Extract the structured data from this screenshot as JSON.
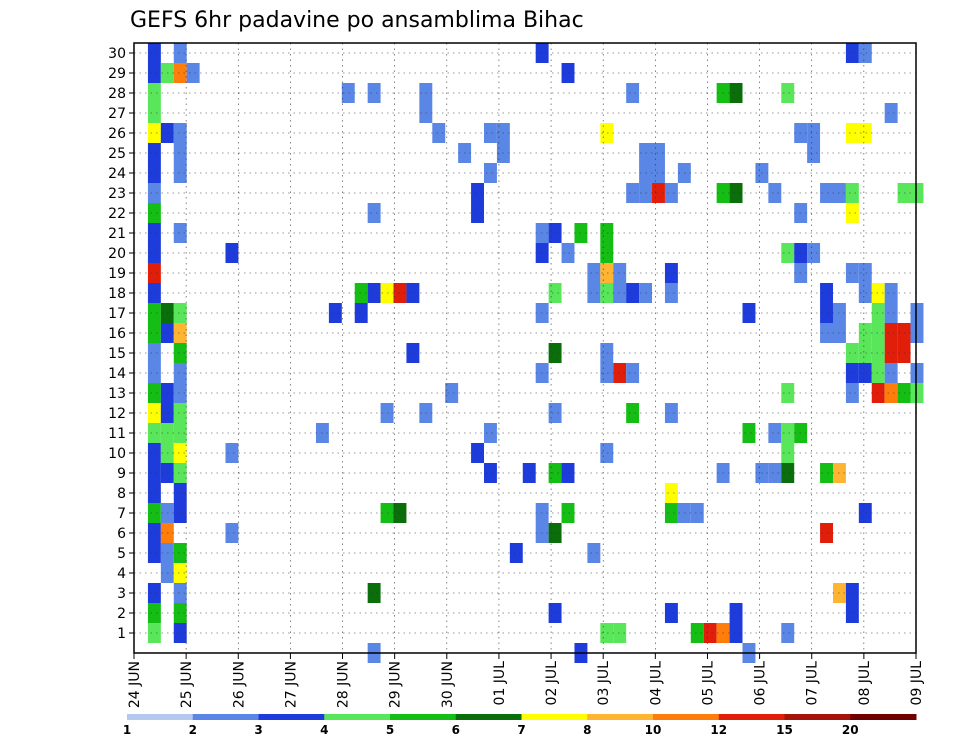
{
  "chart_data": {
    "type": "heatmap",
    "title": "GEFS 6hr padavine po ansamblima Bihac",
    "xlabel": "",
    "ylabel": "",
    "x_tick_labels": [
      "24 JUN",
      "25 JUN",
      "26 JUN",
      "27 JUN",
      "28 JUN",
      "29 JUN",
      "30 JUN",
      "01 JUL",
      "02 JUL",
      "03 JUL",
      "04 JUL",
      "05 JUL",
      "06 JUL",
      "07 JUL",
      "08 JUL",
      "09 JUL"
    ],
    "y_tick_labels": [
      "1",
      "2",
      "3",
      "4",
      "5",
      "6",
      "7",
      "8",
      "9",
      "10",
      "11",
      "12",
      "13",
      "14",
      "15",
      "16",
      "17",
      "18",
      "19",
      "20",
      "21",
      "22",
      "23",
      "24",
      "25",
      "26",
      "27",
      "28",
      "29",
      "30"
    ],
    "steps_per_day": 4,
    "total_steps": 61,
    "ensemble_members": 30,
    "grid": true,
    "colorbar": {
      "labels": [
        "1",
        "2",
        "3",
        "4",
        "5",
        "6",
        "7",
        "8",
        "10",
        "12",
        "15",
        "20"
      ],
      "colors": [
        "#b4c8f0",
        "#5a87e6",
        "#1e3cdc",
        "#5ae65a",
        "#14be14",
        "#0a6e0a",
        "#ffff00",
        "#ffb432",
        "#ff7d0a",
        "#e11e0a",
        "#a5140a",
        "#6e0000"
      ]
    },
    "cells": [
      [
        1,
        1,
        3
      ],
      [
        1,
        2,
        4
      ],
      [
        1,
        3,
        2
      ],
      [
        1,
        5,
        2
      ],
      [
        1,
        6,
        2
      ],
      [
        1,
        7,
        4
      ],
      [
        1,
        8,
        2
      ],
      [
        1,
        9,
        2
      ],
      [
        1,
        10,
        2
      ],
      [
        1,
        11,
        3
      ],
      [
        1,
        12,
        6
      ],
      [
        1,
        13,
        4
      ],
      [
        1,
        14,
        1
      ],
      [
        1,
        15,
        1
      ],
      [
        1,
        16,
        4
      ],
      [
        1,
        17,
        4
      ],
      [
        1,
        18,
        2
      ],
      [
        1,
        19,
        9
      ],
      [
        1,
        20,
        2
      ],
      [
        1,
        21,
        2
      ],
      [
        1,
        22,
        4
      ],
      [
        1,
        23,
        1
      ],
      [
        1,
        24,
        2
      ],
      [
        1,
        25,
        2
      ],
      [
        1,
        26,
        6
      ],
      [
        1,
        27,
        3
      ],
      [
        1,
        28,
        3
      ],
      [
        1,
        29,
        2
      ],
      [
        1,
        30,
        2
      ],
      [
        2,
        4,
        1
      ],
      [
        2,
        5,
        1
      ],
      [
        2,
        6,
        8
      ],
      [
        2,
        7,
        1
      ],
      [
        2,
        9,
        2
      ],
      [
        2,
        10,
        3
      ],
      [
        2,
        11,
        3
      ],
      [
        2,
        12,
        2
      ],
      [
        2,
        13,
        2
      ],
      [
        2,
        16,
        2
      ],
      [
        2,
        17,
        5
      ],
      [
        2,
        26,
        2
      ],
      [
        2,
        29,
        3
      ],
      [
        3,
        1,
        2
      ],
      [
        3,
        2,
        4
      ],
      [
        3,
        3,
        1
      ],
      [
        3,
        4,
        6
      ],
      [
        3,
        5,
        4
      ],
      [
        3,
        7,
        2
      ],
      [
        3,
        8,
        2
      ],
      [
        3,
        9,
        3
      ],
      [
        3,
        10,
        6
      ],
      [
        3,
        11,
        3
      ],
      [
        3,
        12,
        3
      ],
      [
        3,
        13,
        1
      ],
      [
        3,
        14,
        1
      ],
      [
        3,
        15,
        4
      ],
      [
        3,
        16,
        7
      ],
      [
        3,
        17,
        3
      ],
      [
        3,
        21,
        1
      ],
      [
        3,
        24,
        1
      ],
      [
        3,
        25,
        1
      ],
      [
        3,
        26,
        1
      ],
      [
        3,
        29,
        8
      ],
      [
        3,
        30,
        1
      ],
      [
        4,
        29,
        1
      ],
      [
        7,
        6,
        1
      ],
      [
        7,
        10,
        1
      ],
      [
        7,
        20,
        2
      ],
      [
        14,
        11,
        1
      ],
      [
        15,
        17,
        2
      ],
      [
        16,
        28,
        1
      ],
      [
        17,
        18,
        4
      ],
      [
        17,
        17,
        2
      ],
      [
        18,
        0,
        1
      ],
      [
        18,
        3,
        5
      ],
      [
        18,
        18,
        2
      ],
      [
        18,
        22,
        1
      ],
      [
        18,
        28,
        1
      ],
      [
        19,
        7,
        4
      ],
      [
        19,
        12,
        1
      ],
      [
        19,
        18,
        6
      ],
      [
        20,
        7,
        5
      ],
      [
        20,
        18,
        9
      ],
      [
        21,
        15,
        2
      ],
      [
        21,
        18,
        2
      ],
      [
        22,
        12,
        1
      ],
      [
        22,
        27,
        1
      ],
      [
        22,
        28,
        1
      ],
      [
        23,
        26,
        1
      ],
      [
        24,
        13,
        1
      ],
      [
        25,
        25,
        1
      ],
      [
        26,
        10,
        2
      ],
      [
        26,
        22,
        2
      ],
      [
        26,
        23,
        2
      ],
      [
        27,
        9,
        2
      ],
      [
        27,
        11,
        1
      ],
      [
        27,
        26,
        1
      ],
      [
        27,
        24,
        1
      ],
      [
        28,
        25,
        1
      ],
      [
        28,
        26,
        1
      ],
      [
        29,
        5,
        2
      ],
      [
        30,
        9,
        2
      ],
      [
        31,
        7,
        1
      ],
      [
        31,
        6,
        1
      ],
      [
        31,
        21,
        1
      ],
      [
        31,
        17,
        1
      ],
      [
        31,
        14,
        1
      ],
      [
        31,
        30,
        2
      ],
      [
        31,
        20,
        2
      ],
      [
        32,
        2,
        2
      ],
      [
        32,
        6,
        5
      ],
      [
        32,
        9,
        4
      ],
      [
        32,
        12,
        1
      ],
      [
        32,
        15,
        5
      ],
      [
        32,
        18,
        3
      ],
      [
        32,
        21,
        2
      ],
      [
        33,
        7,
        4
      ],
      [
        33,
        9,
        2
      ],
      [
        33,
        20,
        1
      ],
      [
        33,
        29,
        2
      ],
      [
        34,
        0,
        2
      ],
      [
        34,
        21,
        4
      ],
      [
        35,
        19,
        1
      ],
      [
        35,
        18,
        1
      ],
      [
        35,
        5,
        1
      ],
      [
        36,
        1,
        3
      ],
      [
        36,
        10,
        1
      ],
      [
        36,
        14,
        1
      ],
      [
        36,
        15,
        1
      ],
      [
        36,
        18,
        3
      ],
      [
        36,
        19,
        7
      ],
      [
        36,
        26,
        6
      ],
      [
        36,
        21,
        4
      ],
      [
        36,
        20,
        4
      ],
      [
        37,
        1,
        3
      ],
      [
        37,
        18,
        1
      ],
      [
        37,
        19,
        1
      ],
      [
        37,
        14,
        9
      ],
      [
        37,
        18,
        1
      ],
      [
        38,
        12,
        4
      ],
      [
        38,
        18,
        2
      ],
      [
        38,
        14,
        1
      ],
      [
        38,
        23,
        1
      ],
      [
        38,
        28,
        1
      ],
      [
        39,
        18,
        1
      ],
      [
        39,
        24,
        1
      ],
      [
        39,
        23,
        1
      ],
      [
        39,
        25,
        1
      ],
      [
        40,
        25,
        1
      ],
      [
        40,
        24,
        1
      ],
      [
        40,
        23,
        9
      ],
      [
        41,
        7,
        4
      ],
      [
        41,
        8,
        6
      ],
      [
        41,
        12,
        1
      ],
      [
        41,
        19,
        2
      ],
      [
        41,
        23,
        1
      ],
      [
        41,
        2,
        2
      ],
      [
        41,
        18,
        1
      ],
      [
        42,
        7,
        1
      ],
      [
        42,
        24,
        1
      ],
      [
        43,
        7,
        1
      ],
      [
        43,
        1,
        4
      ],
      [
        44,
        1,
        9
      ],
      [
        45,
        1,
        8
      ],
      [
        45,
        9,
        1
      ],
      [
        45,
        23,
        4
      ],
      [
        45,
        28,
        4
      ],
      [
        46,
        1,
        2
      ],
      [
        46,
        2,
        2
      ],
      [
        46,
        23,
        5
      ],
      [
        46,
        28,
        5
      ],
      [
        47,
        0,
        1
      ],
      [
        47,
        17,
        2
      ],
      [
        47,
        11,
        4
      ],
      [
        48,
        9,
        1
      ],
      [
        48,
        24,
        1
      ],
      [
        49,
        11,
        1
      ],
      [
        49,
        9,
        1
      ],
      [
        49,
        23,
        1
      ],
      [
        50,
        11,
        3
      ],
      [
        50,
        10,
        3
      ],
      [
        50,
        9,
        5
      ],
      [
        50,
        13,
        3
      ],
      [
        50,
        20,
        3
      ],
      [
        50,
        28,
        3
      ],
      [
        50,
        1,
        1
      ],
      [
        51,
        11,
        4
      ],
      [
        51,
        19,
        1
      ],
      [
        51,
        20,
        2
      ],
      [
        51,
        22,
        1
      ],
      [
        51,
        26,
        1
      ],
      [
        52,
        20,
        1
      ],
      [
        52,
        25,
        1
      ],
      [
        52,
        26,
        1
      ],
      [
        53,
        9,
        4
      ],
      [
        53,
        6,
        9
      ],
      [
        53,
        16,
        1
      ],
      [
        53,
        17,
        2
      ],
      [
        53,
        18,
        2
      ],
      [
        53,
        23,
        1
      ],
      [
        54,
        9,
        7
      ],
      [
        54,
        3,
        7
      ],
      [
        54,
        23,
        1
      ],
      [
        54,
        17,
        1
      ],
      [
        54,
        16,
        1
      ],
      [
        55,
        2,
        2
      ],
      [
        55,
        3,
        2
      ],
      [
        55,
        14,
        2
      ],
      [
        55,
        13,
        1
      ],
      [
        55,
        15,
        3
      ],
      [
        55,
        23,
        3
      ],
      [
        55,
        26,
        6
      ],
      [
        55,
        30,
        2
      ],
      [
        55,
        19,
        1
      ],
      [
        55,
        22,
        6
      ],
      [
        56,
        14,
        2
      ],
      [
        56,
        15,
        3
      ],
      [
        56,
        16,
        3
      ],
      [
        56,
        18,
        1
      ],
      [
        56,
        19,
        1
      ],
      [
        56,
        26,
        6
      ],
      [
        56,
        30,
        1
      ],
      [
        56,
        7,
        2
      ],
      [
        57,
        14,
        3
      ],
      [
        57,
        15,
        3
      ],
      [
        57,
        16,
        3
      ],
      [
        57,
        17,
        3
      ],
      [
        57,
        18,
        6
      ],
      [
        57,
        13,
        9
      ],
      [
        58,
        13,
        8
      ],
      [
        58,
        15,
        9
      ],
      [
        58,
        16,
        9
      ],
      [
        58,
        17,
        1
      ],
      [
        58,
        18,
        1
      ],
      [
        58,
        27,
        1
      ],
      [
        58,
        14,
        1
      ],
      [
        59,
        13,
        4
      ],
      [
        59,
        15,
        9
      ],
      [
        59,
        16,
        9
      ],
      [
        59,
        23,
        3
      ],
      [
        60,
        13,
        3
      ],
      [
        60,
        16,
        1
      ],
      [
        60,
        17,
        1
      ],
      [
        60,
        23,
        3
      ],
      [
        60,
        14,
        1
      ]
    ]
  }
}
